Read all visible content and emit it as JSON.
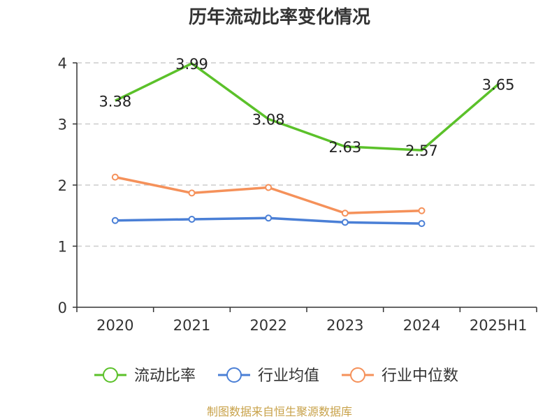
{
  "chart_data": {
    "type": "line",
    "title": "历年流动比率变化情况",
    "categories": [
      "2020",
      "2021",
      "2022",
      "2023",
      "2024",
      "2025H1"
    ],
    "ylim": [
      0,
      4
    ],
    "yticks": [
      "0",
      "1",
      "2",
      "3",
      "4"
    ],
    "grid": true,
    "legend_position": "bottom",
    "series": [
      {
        "name": "流动比率",
        "color": "#5bc12a",
        "values": [
          3.38,
          3.99,
          3.08,
          2.63,
          2.57,
          3.65
        ],
        "labels": [
          "3.38",
          "3.99",
          "3.08",
          "2.63",
          "2.57",
          "3.65"
        ]
      },
      {
        "name": "行业均值",
        "color": "#4a7fd6",
        "values": [
          1.42,
          1.44,
          1.46,
          1.39,
          1.37,
          null
        ]
      },
      {
        "name": "行业中位数",
        "color": "#f5915a",
        "values": [
          2.13,
          1.87,
          1.96,
          1.54,
          1.58,
          null
        ]
      }
    ]
  },
  "source_text": "制图数据来自恒生聚源数据库",
  "source_color": "#c8a24a"
}
